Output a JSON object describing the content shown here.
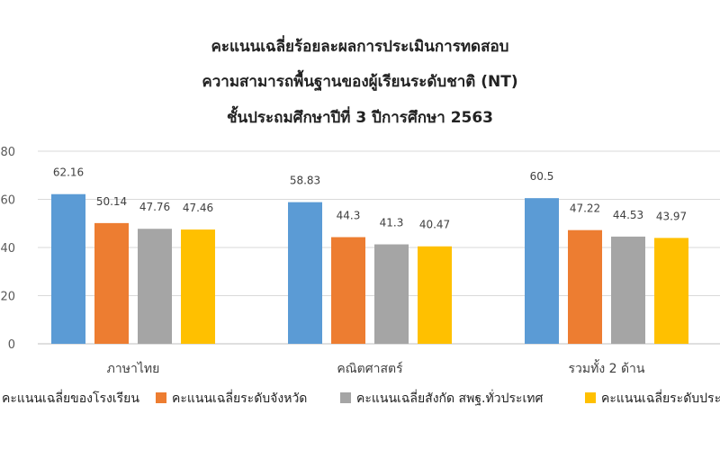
{
  "chart_data": {
    "type": "bar",
    "title_lines": [
      "คะแนนเฉลี่ยร้อยละผลการประเมินการทดสอบ",
      "ความสามารถพื้นฐานของผู้เรียนระดับชาติ (NT)",
      "ชั้นประถมศึกษาปีที่ 3 ปีการศึกษา 2563"
    ],
    "categories": [
      "ภาษาไทย",
      "คณิตศาสตร์",
      "รวมทั้ง 2 ด้าน"
    ],
    "series": [
      {
        "name": "คะแนนเฉลี่ยของโรงเรียน",
        "values": [
          62.16,
          58.83,
          60.5
        ],
        "color": "#5B9BD5"
      },
      {
        "name": "คะแนนเฉลี่ยระดับจังหวัด",
        "values": [
          50.14,
          44.3,
          47.22
        ],
        "color": "#ED7D31"
      },
      {
        "name": "คะแนนเฉลี่ยสังกัด สพฐ.ทั่วประเทศ",
        "values": [
          47.76,
          41.3,
          44.53
        ],
        "color": "#A5A5A5"
      },
      {
        "name": "คะแนนเฉลี่ยระดับประเทศ",
        "values": [
          47.46,
          40.47,
          43.97
        ],
        "color": "#FFC000"
      }
    ],
    "ylim": [
      0,
      80
    ],
    "yticks": [
      "0",
      "20",
      "40",
      "60",
      "80"
    ],
    "data_labels": [
      [
        "62.16",
        "58.83",
        "60.5"
      ],
      [
        "50.14",
        "44.3",
        "47.22"
      ],
      [
        "47.76",
        "41.3",
        "44.53"
      ],
      [
        "47.46",
        "40.47",
        "43.97"
      ]
    ],
    "grid": true,
    "legend_position": "bottom",
    "xlabel": "",
    "ylabel": ""
  }
}
